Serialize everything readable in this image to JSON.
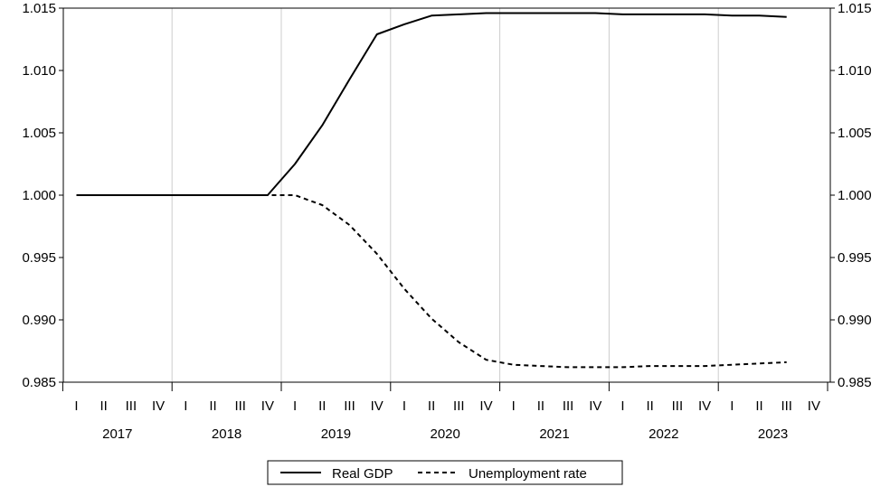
{
  "chart_data": {
    "type": "line",
    "title": "",
    "xlabel": "",
    "ylabel": "",
    "ylim": [
      0.985,
      1.015
    ],
    "yticks": [
      "0.985",
      "0.990",
      "0.995",
      "1.000",
      "1.005",
      "1.010",
      "1.015"
    ],
    "quarters": [
      "I",
      "II",
      "III",
      "IV"
    ],
    "years": [
      "2017",
      "2018",
      "2019",
      "2020",
      "2021",
      "2022",
      "2023"
    ],
    "grid": "vertical at year boundaries",
    "legend": "bottom-center",
    "x": [
      "2017Q1",
      "2017Q2",
      "2017Q3",
      "2017Q4",
      "2018Q1",
      "2018Q2",
      "2018Q3",
      "2018Q4",
      "2019Q1",
      "2019Q2",
      "2019Q3",
      "2019Q4",
      "2020Q1",
      "2020Q2",
      "2020Q3",
      "2020Q4",
      "2021Q1",
      "2021Q2",
      "2021Q3",
      "2021Q4",
      "2022Q1",
      "2022Q2",
      "2022Q3",
      "2022Q4",
      "2023Q1",
      "2023Q2",
      "2023Q3"
    ],
    "series": [
      {
        "name": "Real GDP",
        "style": "solid",
        "values": [
          1.0,
          1.0,
          1.0,
          1.0,
          1.0,
          1.0,
          1.0,
          1.0,
          1.0025,
          1.0056,
          1.0093,
          1.0129,
          1.0137,
          1.0144,
          1.0145,
          1.0146,
          1.0146,
          1.0146,
          1.0146,
          1.0146,
          1.0145,
          1.0145,
          1.0145,
          1.0145,
          1.0144,
          1.0144,
          1.0143
        ]
      },
      {
        "name": "Unemployment rate",
        "style": "dashed",
        "values": [
          1.0,
          1.0,
          1.0,
          1.0,
          1.0,
          1.0,
          1.0,
          1.0,
          1.0,
          0.9992,
          0.9976,
          0.9953,
          0.9925,
          0.9901,
          0.9882,
          0.9868,
          0.9864,
          0.9863,
          0.9862,
          0.9862,
          0.9862,
          0.9863,
          0.9863,
          0.9863,
          0.9864,
          0.9865,
          0.9866
        ]
      }
    ]
  }
}
